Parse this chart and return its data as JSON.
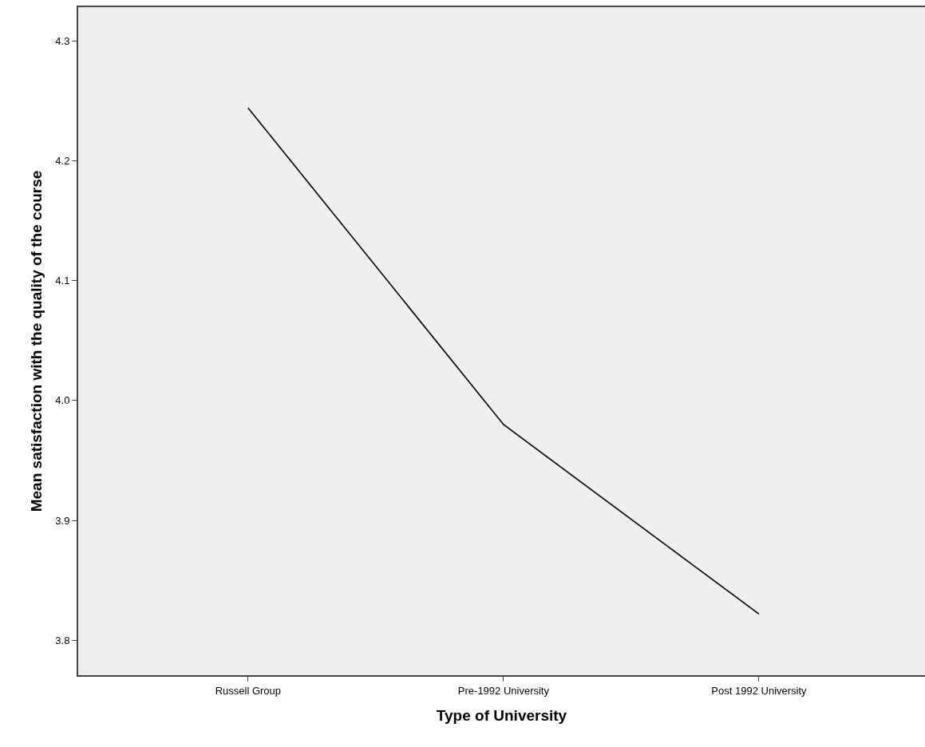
{
  "chart_data": {
    "type": "line",
    "xlabel": "Type of University",
    "ylabel": "Mean satisfaction with the quality of the course",
    "categories": [
      "Russell Group",
      "Pre-1992 University",
      "Post 1992 University"
    ],
    "series": [
      {
        "color": "#000000",
        "values": [
          4.244,
          3.98,
          3.822
        ]
      }
    ],
    "ylim": [
      3.771,
      4.328
    ],
    "yticks": [
      3.8,
      3.9,
      {
        "value": 4.0,
        "label": "4.0"
      },
      4.1,
      4.2,
      4.3
    ],
    "grid": false,
    "marker": "none",
    "line_style": "solid"
  }
}
